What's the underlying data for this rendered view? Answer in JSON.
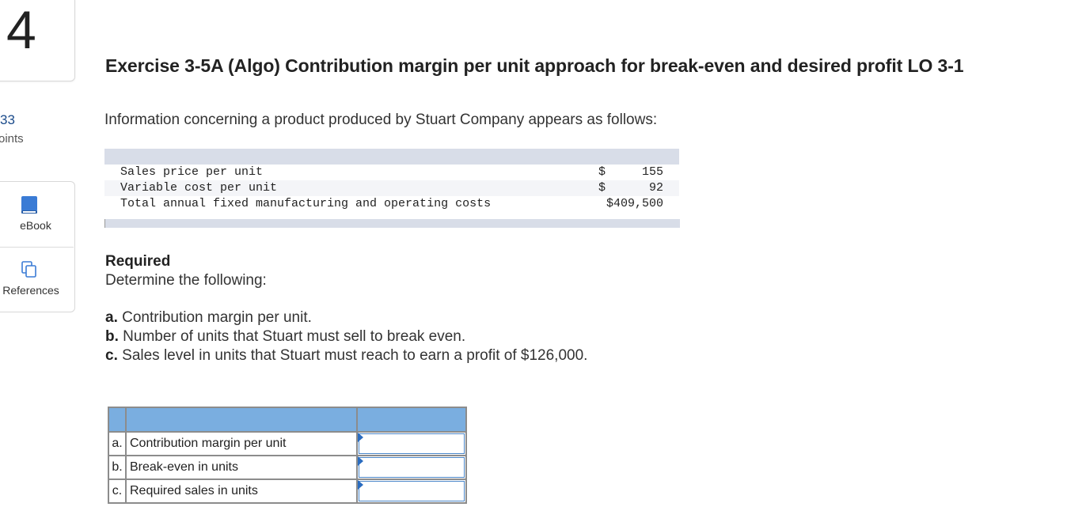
{
  "sidebar": {
    "question_number": "4",
    "points_value": "33",
    "points_label": "oints",
    "ebook_label": "eBook",
    "references_label": "References"
  },
  "exercise": {
    "title": "Exercise 3-5A (Algo) Contribution margin per unit approach for break-even and desired profit LO 3-1",
    "intro": "Information concerning a product produced by Stuart Company appears as follows:"
  },
  "data_table": {
    "rows": [
      {
        "label": "Sales price per unit",
        "currency": "$",
        "amount": "155"
      },
      {
        "label": "Variable cost per unit",
        "currency": "$",
        "amount": "92"
      },
      {
        "label": "Total annual fixed manufacturing and operating costs",
        "currency": "",
        "amount": "$409,500"
      }
    ]
  },
  "required": {
    "title": "Required",
    "text": "Determine the following:",
    "items": [
      {
        "letter": "a.",
        "text": "Contribution margin per unit."
      },
      {
        "letter": "b.",
        "text": "Number of units that Stuart must sell to break even."
      },
      {
        "letter": "c.",
        "text": "Sales level in units that Stuart must reach to earn a profit of $126,000."
      }
    ]
  },
  "answer_table": {
    "rows": [
      {
        "letter": "a.",
        "label": "Contribution margin per unit",
        "value": ""
      },
      {
        "letter": "b.",
        "label": "Break-even in units",
        "value": ""
      },
      {
        "letter": "c.",
        "label": "Required sales in units",
        "value": ""
      }
    ]
  },
  "colors": {
    "header_blue": "#7aaee0",
    "table_band": "#d8dde8",
    "input_border": "#4a86c9",
    "points_blue": "#1a4a8a"
  }
}
